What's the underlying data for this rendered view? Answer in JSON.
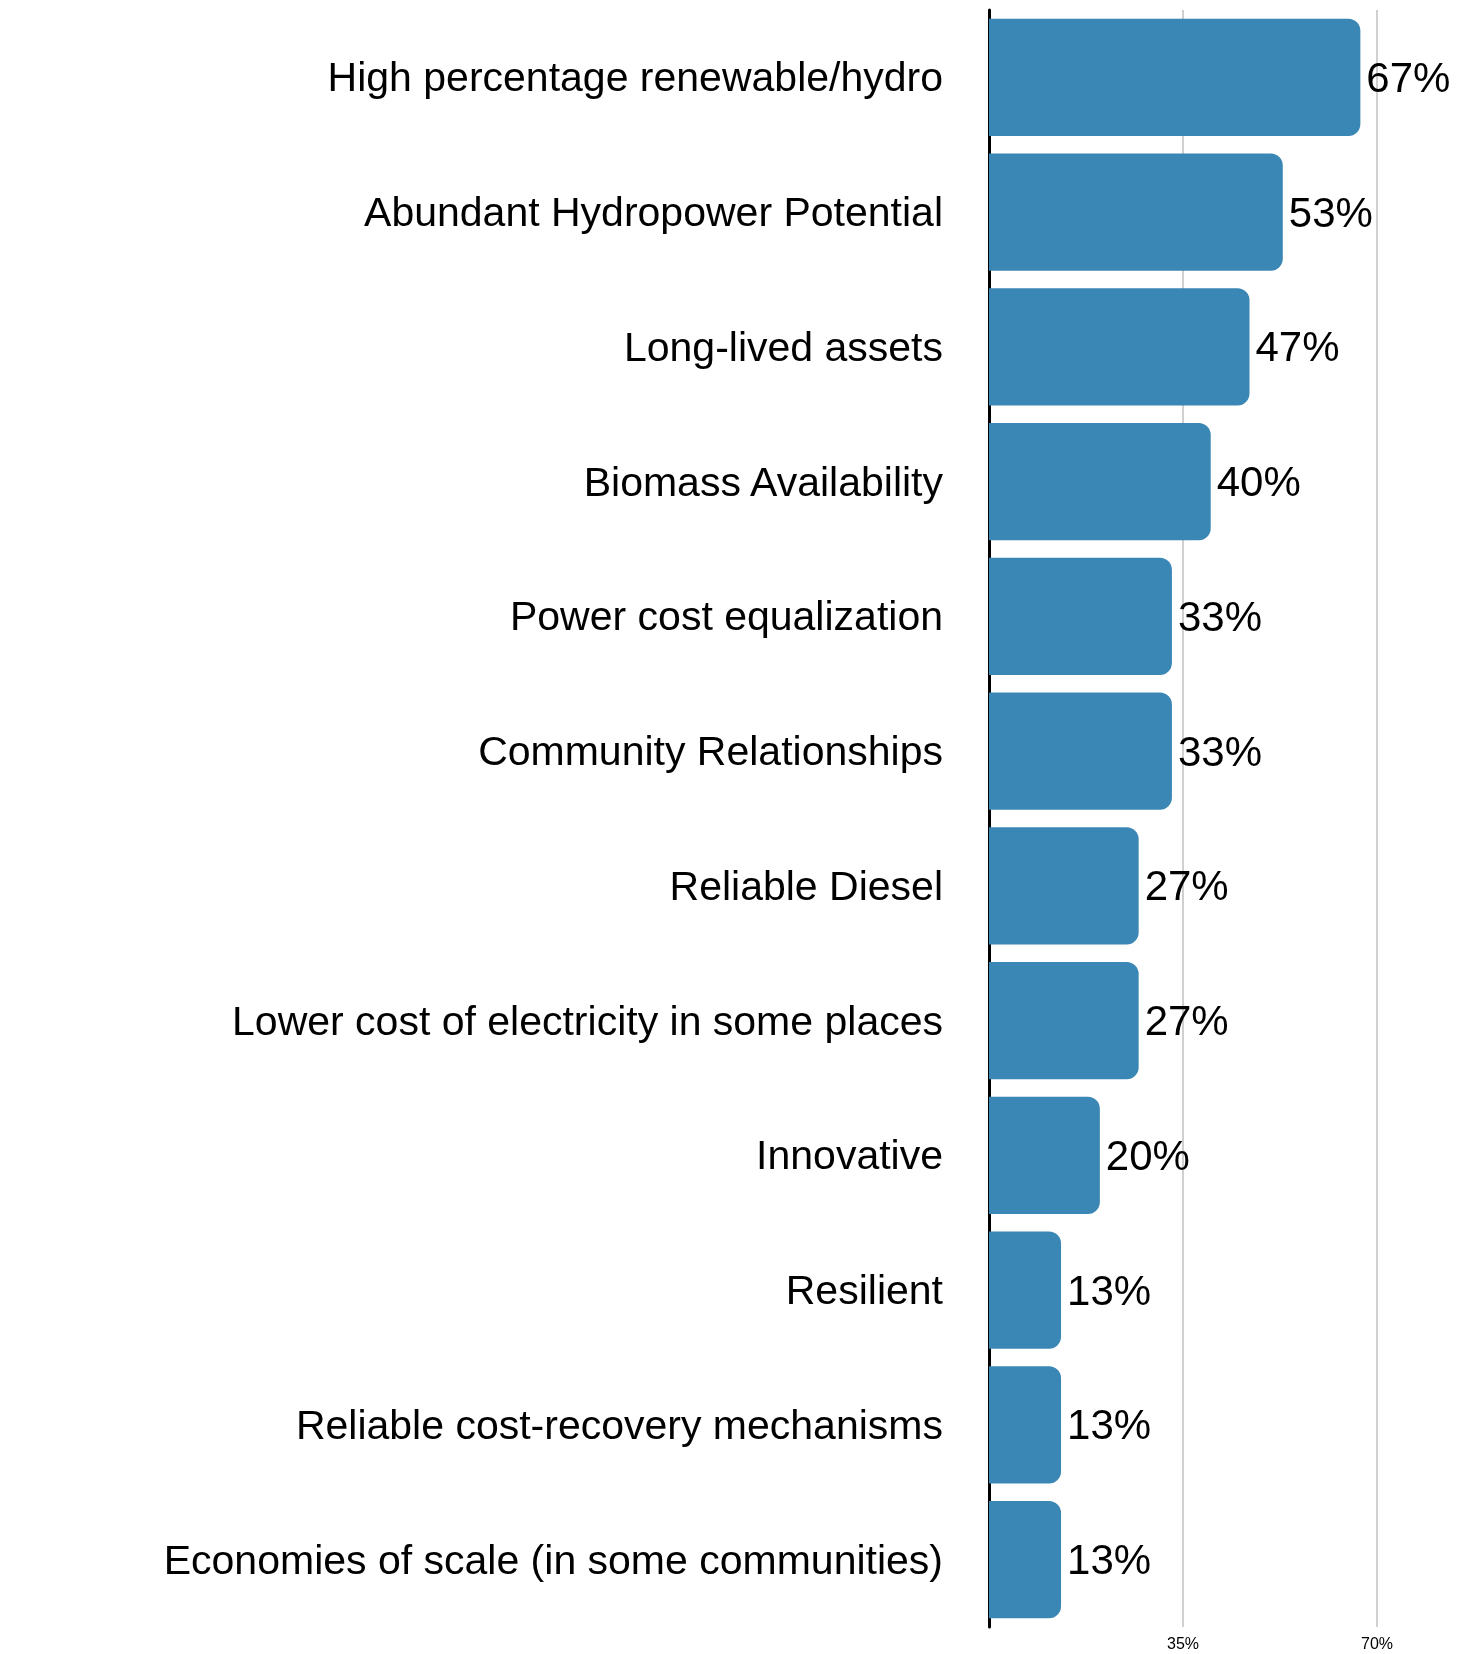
{
  "chart_data": {
    "type": "bar",
    "orientation": "horizontal",
    "categories": [
      "High percentage renewable/hydro",
      "Abundant Hydropower Potential",
      "Long-lived assets",
      "Biomass Availability",
      "Power cost equalization",
      "Community Relationships",
      "Reliable Diesel",
      "Lower cost of electricity in some places",
      "Innovative",
      "Resilient",
      "Reliable cost-recovery mechanisms",
      "Economies of scale (in some communities)"
    ],
    "values": [
      67,
      53,
      47,
      40,
      33,
      33,
      27,
      27,
      20,
      13,
      13,
      13
    ],
    "value_labels": [
      "67%",
      "53%",
      "47%",
      "40%",
      "33%",
      "33%",
      "27%",
      "27%",
      "20%",
      "13%",
      "13%",
      "13%"
    ],
    "color": "#3a86b4",
    "xlim": [
      0,
      70
    ],
    "xticks": [
      {
        "value": 0,
        "label": null
      },
      {
        "value": 35,
        "label": "35%"
      },
      {
        "value": 70,
        "label": "70%"
      }
    ],
    "grid": "x"
  }
}
